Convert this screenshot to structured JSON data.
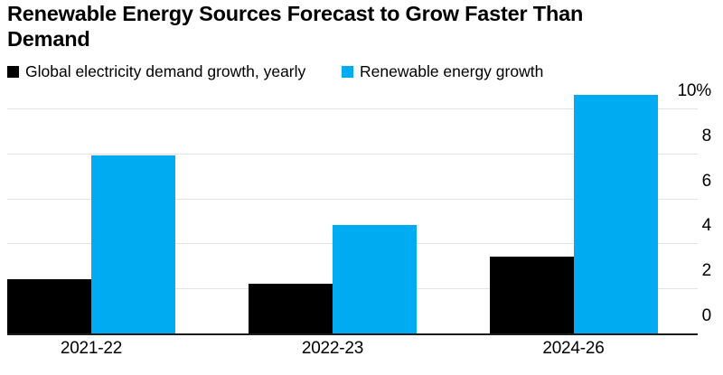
{
  "title_line1": "Renewable Energy Sources Forecast to Grow Faster Than",
  "title_line2": "Demand",
  "legend": {
    "items": [
      {
        "label": "Global electricity demand growth, yearly",
        "color": "#000000"
      },
      {
        "label": "Renewable energy growth",
        "color": "#00abf2"
      }
    ]
  },
  "chart_data": {
    "type": "bar",
    "title": "Renewable Energy Sources Forecast to Grow Faster Than Demand",
    "categories": [
      "2021-22",
      "2022-23",
      "2024-26"
    ],
    "series": [
      {
        "name": "Global electricity demand growth, yearly",
        "color": "#000000",
        "values": [
          2.4,
          2.2,
          3.4
        ]
      },
      {
        "name": "Renewable energy growth",
        "color": "#00abf2",
        "values": [
          7.9,
          4.8,
          10.6
        ]
      }
    ],
    "ylabel": "",
    "xlabel": "",
    "ylim": [
      0,
      10.6
    ],
    "yticks": [
      0,
      2,
      4,
      6,
      8,
      10
    ],
    "ytick_labels": [
      "0",
      "2",
      "4",
      "6",
      "8",
      "10%"
    ],
    "axis_side": "right",
    "grid": "horizontal",
    "legend_position": "top"
  },
  "colors": {
    "background": "#ffffff",
    "gridline": "#e3e3e3",
    "axis_line": "#1c1c1c",
    "text": "#000000"
  }
}
